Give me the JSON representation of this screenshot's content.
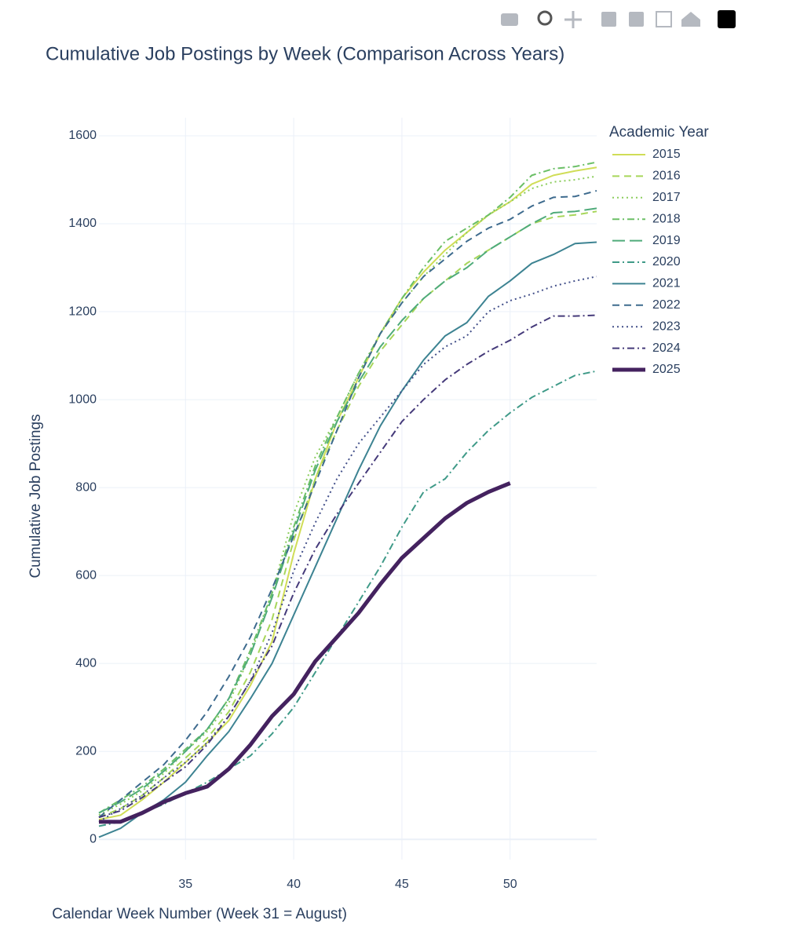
{
  "chart_data": {
    "type": "line",
    "title": "Cumulative Job Postings by Week (Comparison Across Years)",
    "x_label": "Calendar Week Number (Week 31 = August)",
    "y_label": "Cumulative Job Postings",
    "legend_title": "Academic Year",
    "x": [
      31,
      32,
      33,
      34,
      35,
      36,
      37,
      38,
      39,
      40,
      41,
      42,
      43,
      44,
      45,
      46,
      47,
      48,
      49,
      50,
      51,
      52,
      53,
      54
    ],
    "xlim": [
      31,
      54
    ],
    "xticks": [
      35,
      40,
      45,
      50
    ],
    "ylim": [
      -46,
      1641
    ],
    "yticks": [
      0,
      200,
      400,
      600,
      800,
      1000,
      1200,
      1400,
      1600
    ],
    "grid": true,
    "legend": "right",
    "series": [
      {
        "name": "2015",
        "color": "#d0dd57",
        "dash": "solid",
        "width": 2,
        "values": [
          45,
          55,
          90,
          130,
          175,
          220,
          270,
          350,
          450,
          650,
          820,
          950,
          1050,
          1150,
          1230,
          1290,
          1340,
          1380,
          1420,
          1450,
          1490,
          1510,
          1520,
          1528
        ]
      },
      {
        "name": "2016",
        "color": "#a7d65a",
        "dash": "dash",
        "width": 2,
        "values": [
          50,
          70,
          100,
          140,
          185,
          230,
          290,
          380,
          500,
          680,
          820,
          930,
          1030,
          1110,
          1170,
          1230,
          1270,
          1310,
          1340,
          1370,
          1400,
          1415,
          1420,
          1428
        ]
      },
      {
        "name": "2017",
        "color": "#8ccd5d",
        "dash": "dot",
        "width": 2,
        "values": [
          55,
          80,
          110,
          150,
          200,
          245,
          310,
          420,
          560,
          740,
          870,
          960,
          1060,
          1150,
          1220,
          1280,
          1330,
          1380,
          1420,
          1450,
          1480,
          1495,
          1500,
          1508
        ]
      },
      {
        "name": "2018",
        "color": "#6bbf66",
        "dash": "dashdot",
        "width": 2,
        "values": [
          60,
          90,
          120,
          160,
          205,
          250,
          320,
          430,
          560,
          710,
          850,
          960,
          1060,
          1150,
          1230,
          1300,
          1360,
          1390,
          1420,
          1460,
          1510,
          1525,
          1530,
          1540
        ]
      },
      {
        "name": "2019",
        "color": "#4fab7a",
        "dash": "longdash",
        "width": 2,
        "values": [
          60,
          85,
          115,
          155,
          200,
          250,
          320,
          420,
          550,
          700,
          840,
          950,
          1040,
          1120,
          1180,
          1230,
          1270,
          1300,
          1340,
          1370,
          1400,
          1425,
          1428,
          1435
        ]
      },
      {
        "name": "2020",
        "color": "#3f9a88",
        "dash": "dashdot",
        "width": 2,
        "values": [
          30,
          40,
          60,
          80,
          105,
          130,
          160,
          190,
          240,
          300,
          380,
          460,
          540,
          620,
          710,
          790,
          820,
          880,
          930,
          970,
          1005,
          1030,
          1055,
          1065
        ]
      },
      {
        "name": "2021",
        "color": "#3d8392",
        "dash": "solid",
        "width": 2,
        "values": [
          5,
          25,
          60,
          90,
          130,
          190,
          245,
          320,
          400,
          510,
          620,
          730,
          840,
          940,
          1020,
          1090,
          1145,
          1175,
          1235,
          1270,
          1310,
          1330,
          1355,
          1358
        ]
      },
      {
        "name": "2022",
        "color": "#3e6b8e",
        "dash": "dash",
        "width": 2,
        "values": [
          50,
          90,
          130,
          170,
          225,
          290,
          370,
          460,
          570,
          690,
          810,
          930,
          1050,
          1150,
          1220,
          1280,
          1320,
          1360,
          1390,
          1410,
          1440,
          1460,
          1462,
          1475
        ]
      },
      {
        "name": "2023",
        "color": "#43508a",
        "dash": "dot",
        "width": 2,
        "values": [
          40,
          70,
          100,
          140,
          175,
          220,
          280,
          360,
          470,
          610,
          720,
          820,
          900,
          960,
          1020,
          1080,
          1120,
          1145,
          1200,
          1225,
          1240,
          1258,
          1270,
          1280
        ]
      },
      {
        "name": "2024",
        "color": "#453a7a",
        "dash": "dashdot",
        "width": 2,
        "values": [
          50,
          65,
          95,
          130,
          165,
          215,
          280,
          360,
          440,
          560,
          660,
          740,
          810,
          880,
          950,
          1000,
          1045,
          1080,
          1110,
          1135,
          1165,
          1190,
          1190,
          1192
        ]
      },
      {
        "name": "2025",
        "color": "#44225f",
        "dash": "solid",
        "width": 5,
        "values": [
          40,
          40,
          60,
          85,
          105,
          120,
          160,
          215,
          280,
          330,
          405,
          460,
          515,
          580,
          640,
          685,
          730,
          765,
          790,
          810,
          null,
          null,
          null,
          null
        ]
      }
    ]
  }
}
